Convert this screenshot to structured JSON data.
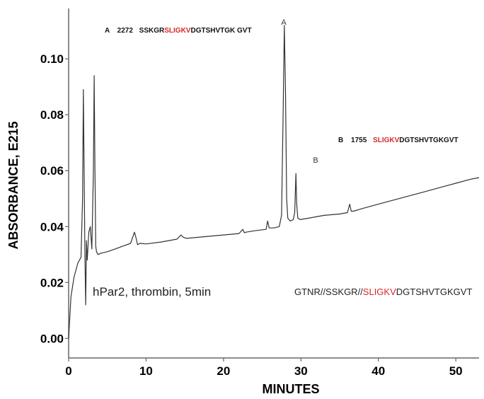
{
  "chart_data": {
    "type": "line",
    "title": "",
    "xlabel": "MINUTES",
    "ylabel": "ABSORBANCE, E215",
    "xlim": [
      0,
      53
    ],
    "ylim": [
      -0.007,
      0.118
    ],
    "x_ticks": [
      {
        "value": 0,
        "label": "0"
      },
      {
        "value": 10,
        "label": "10"
      },
      {
        "value": 20,
        "label": "20"
      },
      {
        "value": 30,
        "label": "30"
      },
      {
        "value": 40,
        "label": "40"
      },
      {
        "value": 50,
        "label": "50"
      }
    ],
    "y_ticks": [
      {
        "value": 0.0,
        "label": "0.00"
      },
      {
        "value": 0.02,
        "label": "0.02"
      },
      {
        "value": 0.04,
        "label": "0.04"
      },
      {
        "value": 0.06,
        "label": "0.06"
      },
      {
        "value": 0.08,
        "label": "0.08"
      },
      {
        "value": 0.1,
        "label": "0.10"
      }
    ],
    "grid": false,
    "series": [
      {
        "x": [
          0,
          0.3,
          0.7,
          1.2,
          1.6,
          1.8,
          1.9,
          2.0,
          2.1,
          2.2,
          2.3,
          2.4,
          2.6,
          2.8,
          3.0,
          3.2,
          3.3,
          3.4,
          3.5,
          3.6,
          3.8,
          4.2,
          5,
          6,
          7,
          8,
          8.5,
          8.7,
          8.9,
          9.2,
          10,
          12,
          14,
          14.5,
          14.8,
          15.2,
          16,
          18,
          20,
          22,
          22.5,
          22.7,
          22.9,
          24,
          25.5,
          25.7,
          25.9,
          26.5,
          27.2,
          27.5,
          27.7,
          27.85,
          28.0,
          28.15,
          28.3,
          28.6,
          29.0,
          29.2,
          29.35,
          29.45,
          29.6,
          29.9,
          31,
          33,
          35,
          36,
          36.3,
          36.5,
          36.8,
          38,
          40,
          42,
          44,
          46,
          48,
          50,
          52,
          53
        ],
        "y": [
          0.0,
          0.015,
          0.022,
          0.027,
          0.029,
          0.05,
          0.089,
          0.06,
          0.03,
          0.012,
          0.035,
          0.028,
          0.038,
          0.04,
          0.032,
          0.06,
          0.094,
          0.06,
          0.033,
          0.031,
          0.03,
          0.0305,
          0.031,
          0.032,
          0.033,
          0.034,
          0.038,
          0.036,
          0.0335,
          0.034,
          0.0338,
          0.0345,
          0.0355,
          0.037,
          0.0362,
          0.0358,
          0.036,
          0.0365,
          0.037,
          0.0375,
          0.039,
          0.0378,
          0.038,
          0.0385,
          0.039,
          0.042,
          0.0395,
          0.0395,
          0.04,
          0.044,
          0.08,
          0.112,
          0.09,
          0.05,
          0.043,
          0.042,
          0.0425,
          0.045,
          0.059,
          0.048,
          0.043,
          0.0425,
          0.043,
          0.044,
          0.0445,
          0.045,
          0.048,
          0.0455,
          0.0455,
          0.0465,
          0.048,
          0.0495,
          0.051,
          0.0525,
          0.054,
          0.0555,
          0.057,
          0.0575
        ]
      }
    ],
    "annotations": {
      "peak_a_label": "A",
      "peak_b_label": "B",
      "a_letter": "A",
      "a_number": "2272",
      "a_seq_before": "SSKGR",
      "a_seq_highlight": "SLIGKV",
      "a_seq_after": "DGTSHVTGK GVT",
      "b_letter": "B",
      "b_number": "1755",
      "b_seq_highlight": "SLIGKV",
      "b_seq_after": "DGTSHVTGKGVT",
      "sample_label": "hPar2, thrombin, 5min",
      "full_seq_before": "GTNR//SSKGR//",
      "full_seq_highlight": "SLIGKV",
      "full_seq_after": "DGTSHVTGKGVT"
    },
    "colors": {
      "trace": "#333333",
      "axis": "#666666",
      "highlight": "#d42a2a"
    }
  }
}
